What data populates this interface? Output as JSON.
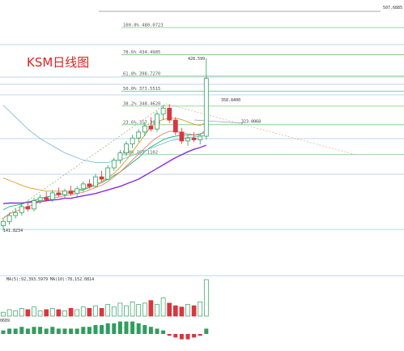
{
  "chart_data": {
    "type": "candlestick",
    "title": "KSM日线图",
    "ylim": [
      130,
      510
    ],
    "top_price_label": "507.6885",
    "peak_label": "428.599",
    "low_label": "141.8234",
    "fib_levels": [
      {
        "label": "100.0% 480.0723",
        "value": 480.0723
      },
      {
        "label": "78.6% 434.4985",
        "value": 434.4985
      },
      {
        "label": "61.8% 398.7270",
        "value": 398.727
      },
      {
        "label": "50.0% 373.5515",
        "value": 373.5515
      },
      {
        "label": "38.2% 348.4620",
        "value": 348.462
      },
      {
        "label": "23.6% 317.3015",
        "value": 317.3015
      },
      {
        "label": "0.0% 267.1102",
        "value": 267.1102
      }
    ],
    "price_labels": [
      {
        "text": "358.8400",
        "value": 358.84
      },
      {
        "text": "323.0068",
        "value": 323.0068
      }
    ],
    "candles": [
      {
        "o": 148,
        "h": 160,
        "l": 140,
        "c": 155
      },
      {
        "o": 155,
        "h": 170,
        "l": 150,
        "c": 165
      },
      {
        "o": 165,
        "h": 178,
        "l": 160,
        "c": 170
      },
      {
        "o": 170,
        "h": 185,
        "l": 165,
        "c": 180
      },
      {
        "o": 180,
        "h": 190,
        "l": 172,
        "c": 176
      },
      {
        "o": 176,
        "h": 195,
        "l": 172,
        "c": 190
      },
      {
        "o": 190,
        "h": 200,
        "l": 185,
        "c": 195
      },
      {
        "o": 195,
        "h": 205,
        "l": 188,
        "c": 192
      },
      {
        "o": 192,
        "h": 208,
        "l": 188,
        "c": 203
      },
      {
        "o": 203,
        "h": 212,
        "l": 196,
        "c": 200
      },
      {
        "o": 200,
        "h": 210,
        "l": 194,
        "c": 206
      },
      {
        "o": 206,
        "h": 215,
        "l": 198,
        "c": 202
      },
      {
        "o": 202,
        "h": 214,
        "l": 196,
        "c": 210
      },
      {
        "o": 210,
        "h": 222,
        "l": 205,
        "c": 218
      },
      {
        "o": 218,
        "h": 226,
        "l": 210,
        "c": 214
      },
      {
        "o": 214,
        "h": 235,
        "l": 212,
        "c": 230
      },
      {
        "o": 230,
        "h": 240,
        "l": 222,
        "c": 226
      },
      {
        "o": 226,
        "h": 250,
        "l": 224,
        "c": 245
      },
      {
        "o": 245,
        "h": 262,
        "l": 240,
        "c": 258
      },
      {
        "o": 258,
        "h": 275,
        "l": 252,
        "c": 270
      },
      {
        "o": 270,
        "h": 290,
        "l": 265,
        "c": 285
      },
      {
        "o": 285,
        "h": 300,
        "l": 278,
        "c": 295
      },
      {
        "o": 295,
        "h": 310,
        "l": 288,
        "c": 305
      },
      {
        "o": 305,
        "h": 322,
        "l": 298,
        "c": 315
      },
      {
        "o": 315,
        "h": 330,
        "l": 306,
        "c": 310
      },
      {
        "o": 310,
        "h": 340,
        "l": 305,
        "c": 335
      },
      {
        "o": 335,
        "h": 350,
        "l": 325,
        "c": 345
      },
      {
        "o": 345,
        "h": 352,
        "l": 320,
        "c": 325
      },
      {
        "o": 325,
        "h": 330,
        "l": 300,
        "c": 305
      },
      {
        "o": 305,
        "h": 312,
        "l": 285,
        "c": 290
      },
      {
        "o": 290,
        "h": 300,
        "l": 282,
        "c": 295
      },
      {
        "o": 295,
        "h": 305,
        "l": 288,
        "c": 292
      },
      {
        "o": 292,
        "h": 300,
        "l": 284,
        "c": 298
      },
      {
        "o": 298,
        "h": 428.6,
        "l": 292,
        "c": 395
      }
    ],
    "ma_lines": [
      {
        "color": "#8a2be2",
        "values": [
          185,
          186,
          186,
          186,
          187,
          188,
          188,
          190,
          191,
          192,
          194,
          194,
          196,
          198,
          200,
          202,
          205,
          208,
          211,
          214,
          218,
          222,
          226,
          232,
          238,
          244,
          250,
          256,
          262,
          267,
          272,
          276,
          279,
          283
        ]
      },
      {
        "color": "#20b070",
        "values": [
          175,
          180,
          182,
          184,
          188,
          190,
          194,
          196,
          198,
          200,
          202,
          204,
          206,
          208,
          212,
          216,
          220,
          226,
          232,
          238,
          246,
          254,
          262,
          272,
          280,
          286,
          292,
          296,
          298,
          300,
          300,
          300,
          302,
          305
        ]
      },
      {
        "color": "#f08060",
        "values": [
          160,
          168,
          172,
          176,
          180,
          184,
          188,
          192,
          194,
          196,
          198,
          200,
          202,
          204,
          208,
          212,
          216,
          222,
          230,
          238,
          248,
          258,
          268,
          278,
          288,
          296,
          302,
          306,
          306,
          304,
          302,
          300,
          300,
          310
        ]
      },
      {
        "color": "#d4a020",
        "values": [
          228,
          224,
          220,
          216,
          212,
          210,
          208,
          206,
          206,
          206,
          206,
          206,
          208,
          210,
          214,
          218,
          222,
          228,
          236,
          246,
          258,
          272,
          286,
          300,
          314,
          322,
          326,
          328,
          328,
          326,
          322,
          318,
          316,
          322
        ]
      },
      {
        "color": "#80c0d0",
        "values": [
          350,
          340,
          330,
          320,
          310,
          302,
          294,
          288,
          282,
          276,
          270,
          266,
          262,
          258,
          256,
          254,
          254,
          254,
          256,
          258,
          262,
          266,
          270,
          274,
          278,
          282,
          286,
          290,
          292,
          294,
          296,
          297,
          298,
          300
        ]
      }
    ],
    "volume_panel": {
      "labels": [
        "MA(5):92,393.5979",
        "MA(10):78,152.0814"
      ],
      "values": [
        3,
        5,
        4,
        6,
        5,
        7,
        4,
        5,
        6,
        5,
        4,
        6,
        5,
        7,
        6,
        8,
        6,
        9,
        7,
        10,
        8,
        11,
        9,
        10,
        12,
        9,
        14,
        10,
        8,
        7,
        9,
        8,
        11,
        28
      ],
      "up": [
        1,
        1,
        1,
        1,
        0,
        1,
        1,
        0,
        1,
        0,
        1,
        0,
        1,
        1,
        0,
        1,
        0,
        1,
        1,
        1,
        1,
        1,
        1,
        1,
        0,
        1,
        1,
        0,
        0,
        0,
        1,
        0,
        1,
        1
      ]
    },
    "macd_panel": {
      "label": "0689",
      "values": [
        2,
        3,
        3,
        4,
        3,
        4,
        4,
        3,
        4,
        3,
        3,
        3,
        3,
        4,
        4,
        5,
        5,
        6,
        6,
        7,
        7,
        7,
        6,
        5,
        4,
        3,
        2,
        -1,
        -2,
        -3,
        -3,
        -2,
        -1,
        3
      ]
    }
  }
}
